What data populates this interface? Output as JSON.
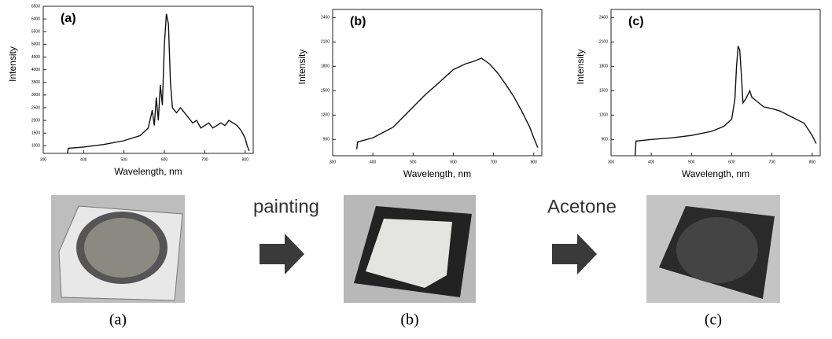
{
  "chart_data": [
    {
      "type": "line",
      "title": "(a)",
      "x_label": "Wavelength, nm",
      "y_label": "Intensity",
      "x": [
        360,
        362,
        400,
        450,
        500,
        540,
        560,
        570,
        575,
        580,
        585,
        590,
        595,
        600,
        605,
        610,
        615,
        620,
        630,
        640,
        650,
        660,
        670,
        680,
        690,
        700,
        710,
        720,
        730,
        740,
        750,
        760,
        770,
        780,
        790,
        800,
        805,
        810
      ],
      "series": [
        {
          "name": "(a)",
          "color": "#111111",
          "values": [
            700,
            900,
            950,
            1050,
            1200,
            1400,
            1700,
            2400,
            1800,
            2900,
            2000,
            3400,
            2600,
            5000,
            6200,
            5800,
            3500,
            2500,
            2300,
            2500,
            2300,
            2100,
            1900,
            2000,
            1700,
            1800,
            1900,
            1700,
            1800,
            1900,
            1800,
            2000,
            1900,
            1800,
            1600,
            1300,
            1000,
            800
          ]
        }
      ],
      "xlim": [
        300,
        820
      ],
      "ylim": [
        700,
        6500
      ],
      "xticks": [
        300,
        400,
        500,
        600,
        700,
        800
      ],
      "yticks": [
        1000,
        1500,
        2000,
        2500,
        3000,
        3500,
        4000,
        4500,
        5000,
        5500,
        6000,
        6500
      ]
    },
    {
      "type": "line",
      "title": "(b)",
      "x_label": "Wavelength, nm",
      "y_label": "Intensity",
      "x": [
        360,
        362,
        400,
        450,
        500,
        530,
        560,
        600,
        630,
        650,
        670,
        690,
        710,
        730,
        750,
        770,
        790,
        800,
        810
      ],
      "series": [
        {
          "name": "(b)",
          "color": "#111111",
          "values": [
            780,
            870,
            920,
            1050,
            1300,
            1450,
            1580,
            1760,
            1830,
            1860,
            1900,
            1830,
            1720,
            1580,
            1430,
            1250,
            1050,
            920,
            800
          ]
        }
      ],
      "xlim": [
        300,
        820
      ],
      "ylim": [
        700,
        2500
      ],
      "xticks": [
        300,
        400,
        500,
        600,
        700,
        800
      ],
      "yticks": [
        900,
        1200,
        1500,
        1800,
        2100,
        2400
      ]
    },
    {
      "type": "line",
      "title": "(c)",
      "x_label": "Wavelength, nm",
      "y_label": "Intensity",
      "x": [
        360,
        362,
        400,
        450,
        500,
        550,
        580,
        600,
        608,
        612,
        616,
        620,
        624,
        628,
        635,
        645,
        650,
        660,
        680,
        700,
        720,
        740,
        760,
        780,
        800,
        810
      ],
      "series": [
        {
          "name": "(c)",
          "color": "#111111",
          "values": [
            700,
            880,
            900,
            920,
            950,
            1000,
            1060,
            1150,
            1400,
            1800,
            2050,
            2000,
            1700,
            1350,
            1400,
            1500,
            1420,
            1380,
            1300,
            1280,
            1250,
            1200,
            1150,
            1100,
            950,
            850
          ]
        }
      ],
      "xlim": [
        300,
        820
      ],
      "ylim": [
        700,
        2500
      ],
      "xticks": [
        300,
        400,
        500,
        600,
        700,
        800
      ],
      "yticks": [
        900,
        1200,
        1500,
        1800,
        2100,
        2400
      ]
    }
  ],
  "photo_captions": [
    "(a)",
    "(b)",
    "(c)"
  ],
  "arrow_labels": [
    "painting",
    "Acetone"
  ]
}
